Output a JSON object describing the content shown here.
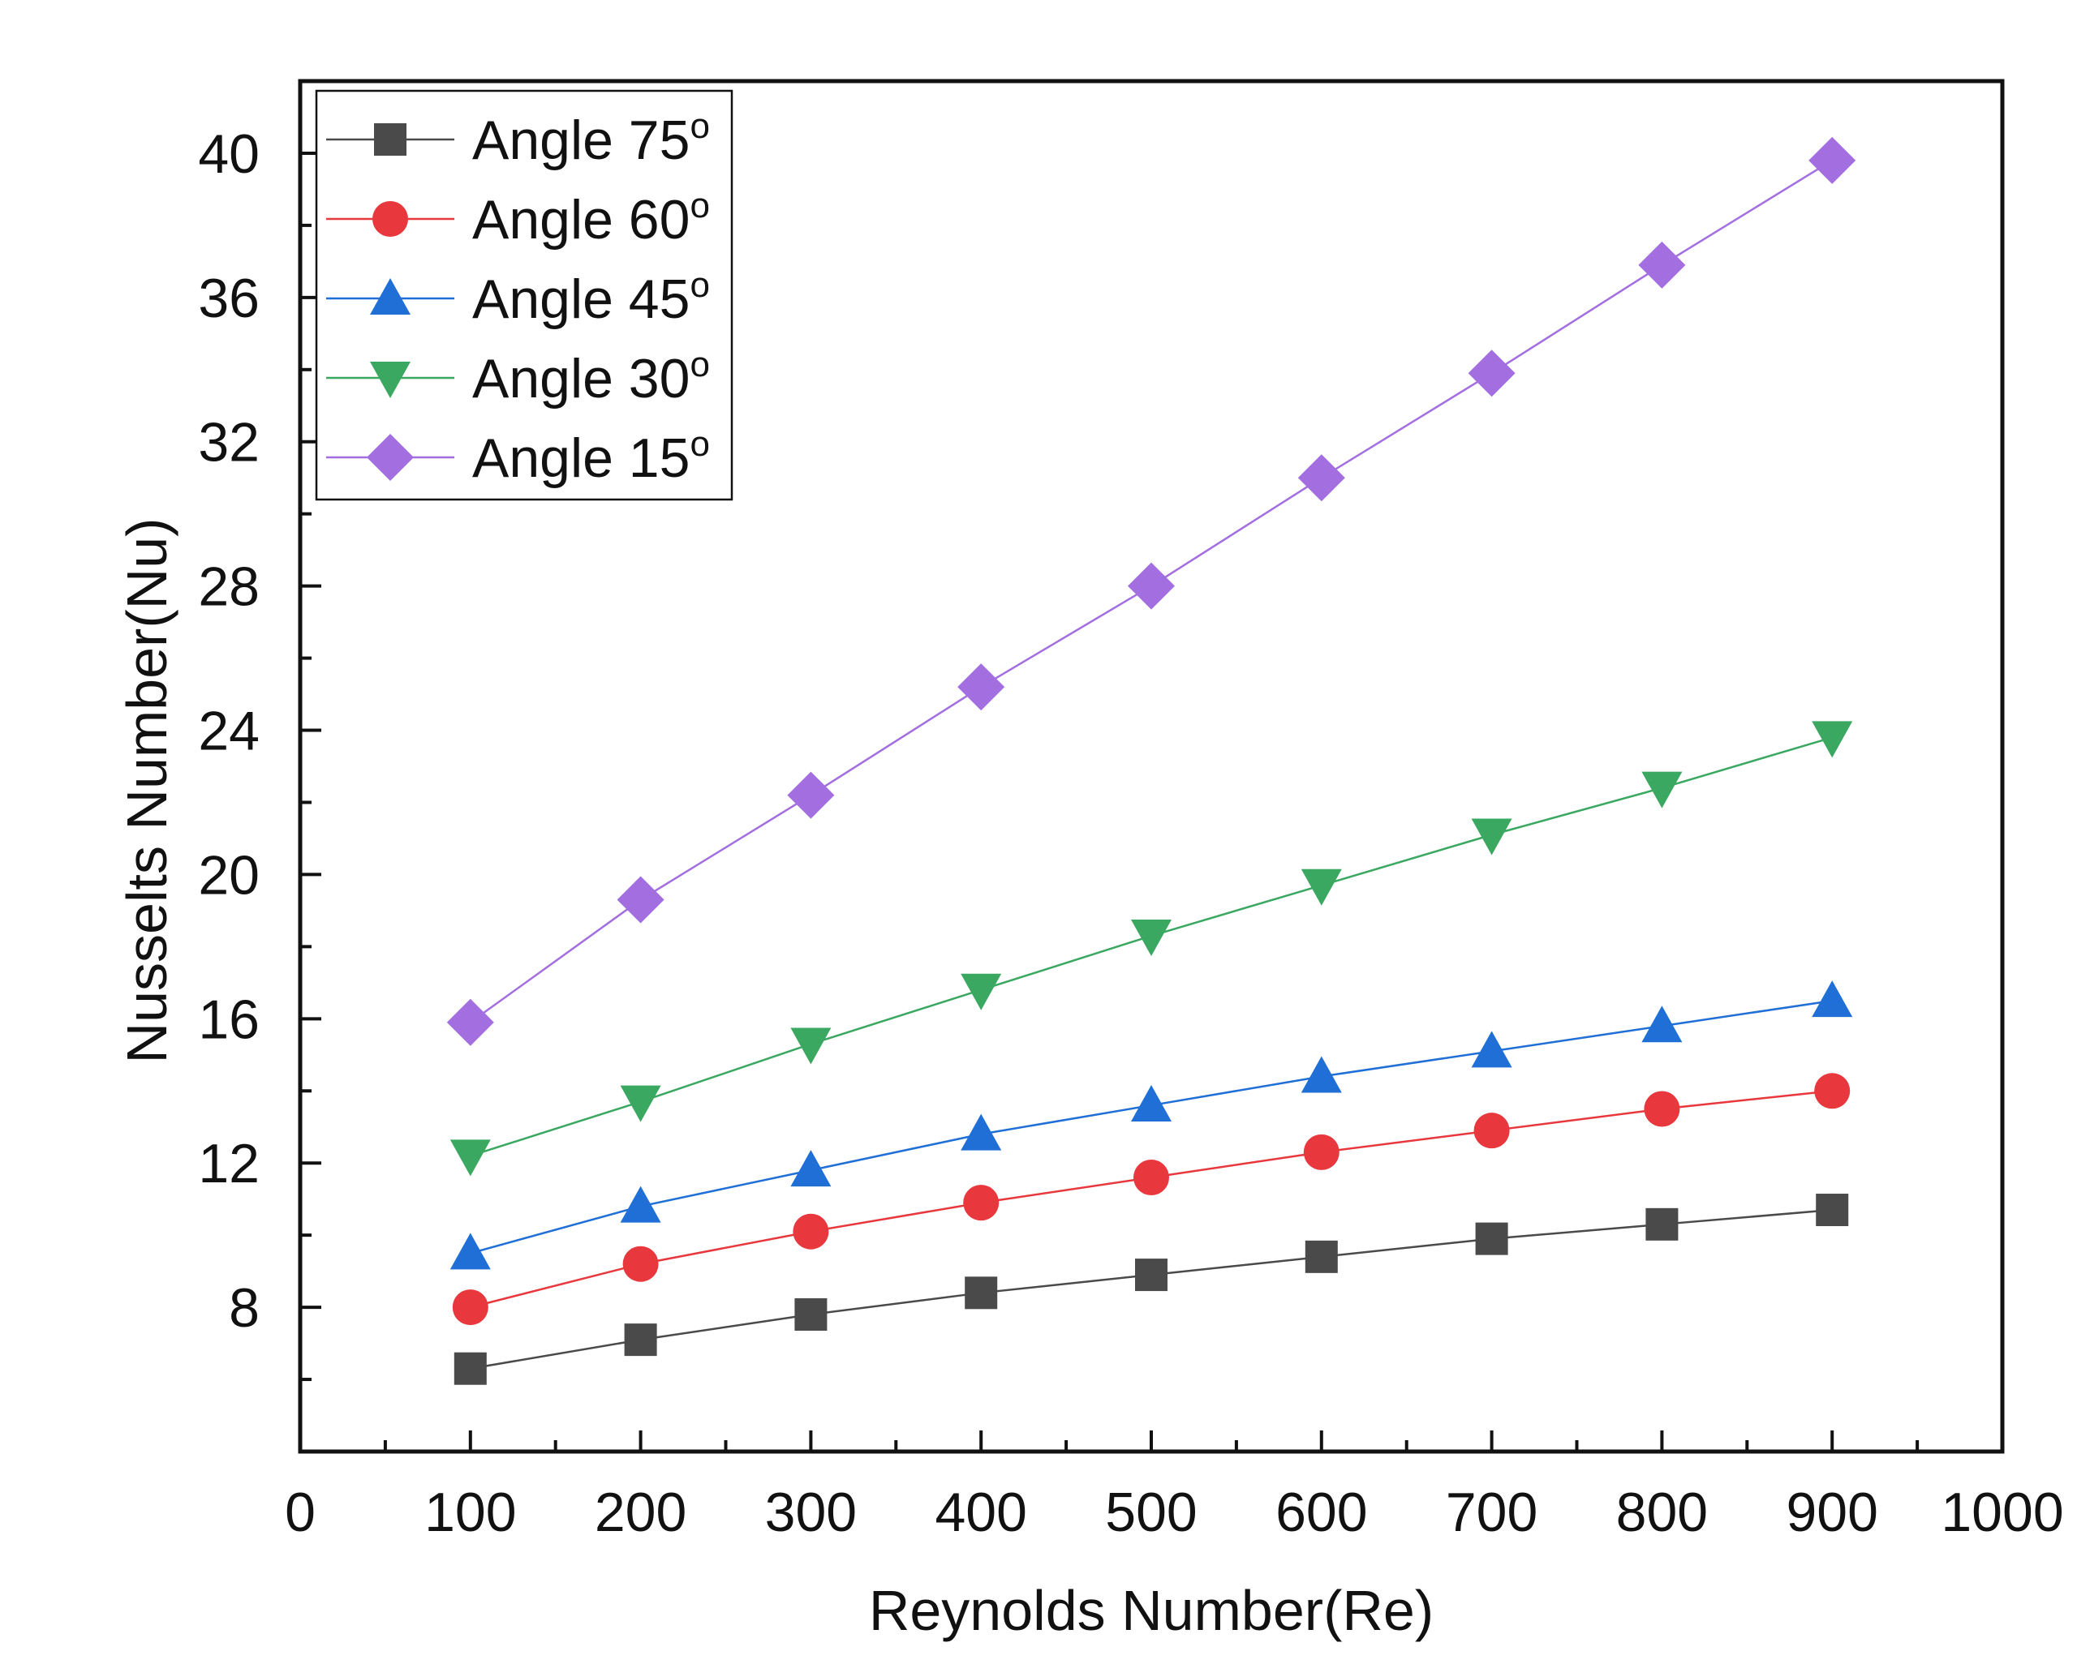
{
  "chart_data": {
    "type": "line",
    "title": "",
    "xlabel": "Reynolds Number(Re)",
    "ylabel": "Nusselts Number(Nu)",
    "xlim": [
      0,
      1000
    ],
    "ylim": [
      4,
      42
    ],
    "x_ticks": [
      0,
      100,
      200,
      300,
      400,
      500,
      600,
      700,
      800,
      900,
      1000
    ],
    "y_ticks": [
      8,
      12,
      16,
      20,
      24,
      28,
      32,
      36,
      40
    ],
    "x_tick_labels": [
      "0",
      "100",
      "200",
      "300",
      "400",
      "500",
      "600",
      "700",
      "800",
      "900",
      "1000"
    ],
    "y_tick_labels": [
      "8",
      "12",
      "16",
      "20",
      "24",
      "28",
      "32",
      "36",
      "40"
    ],
    "legend_position": "top-left",
    "grid": false,
    "x": [
      100,
      200,
      300,
      400,
      500,
      600,
      700,
      800,
      900
    ],
    "series": [
      {
        "name": "Angle 75",
        "sup": "o",
        "marker": "square",
        "color": "#4a4a4a",
        "values": [
          6.3,
          7.1,
          7.8,
          8.4,
          8.9,
          9.4,
          9.9,
          10.3,
          10.7
        ]
      },
      {
        "name": "Angle 60",
        "sup": "o",
        "marker": "circle",
        "color": "#e8383d",
        "values": [
          8.0,
          9.2,
          10.1,
          10.9,
          11.6,
          12.3,
          12.9,
          13.5,
          14.0
        ]
      },
      {
        "name": "Angle 45",
        "sup": "o",
        "marker": "triangle-up",
        "color": "#1f6fd6",
        "values": [
          9.5,
          10.8,
          11.8,
          12.8,
          13.6,
          14.4,
          15.1,
          15.8,
          16.5
        ]
      },
      {
        "name": "Angle 30",
        "sup": "o",
        "marker": "triangle-down",
        "color": "#3aa860",
        "values": [
          12.2,
          13.7,
          15.3,
          16.8,
          18.3,
          19.7,
          21.1,
          22.4,
          23.8
        ]
      },
      {
        "name": "Angle 15",
        "sup": "o",
        "marker": "diamond",
        "color": "#a36ee0",
        "values": [
          15.9,
          19.3,
          22.2,
          25.2,
          28.0,
          31.0,
          33.9,
          36.9,
          39.8
        ]
      }
    ]
  }
}
